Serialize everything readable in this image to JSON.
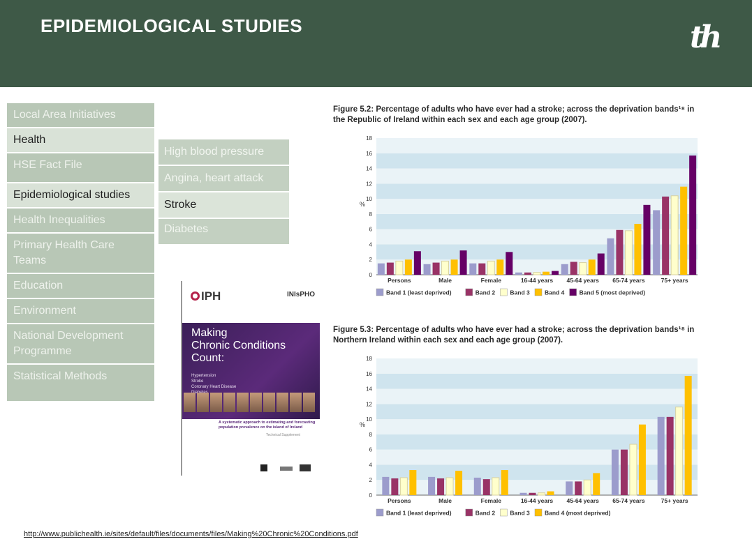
{
  "header": {
    "title": "EPIDEMIOLOGICAL STUDIES",
    "logo": "th"
  },
  "nav": {
    "items": [
      {
        "label": "Local Area Initiatives",
        "active": false
      },
      {
        "label": "Health",
        "active": true
      },
      {
        "label": "HSE Fact File",
        "active": false
      },
      {
        "label": "Epidemiological studies",
        "active": true
      },
      {
        "label": "Health Inequalities",
        "active": false
      },
      {
        "label": "Primary Health Care Teams",
        "active": false
      },
      {
        "label": "Education",
        "active": false
      },
      {
        "label": "Environment",
        "active": false
      },
      {
        "label": "National Development Programme",
        "active": false
      },
      {
        "label": "Statistical Methods",
        "active": false
      }
    ]
  },
  "subnav": {
    "items": [
      {
        "label": "High blood pressure",
        "active": false
      },
      {
        "label": "Angina, heart attack",
        "active": false
      },
      {
        "label": "Stroke",
        "active": true
      },
      {
        "label": "Diabetes",
        "active": false
      }
    ]
  },
  "report": {
    "iph": "IPH",
    "insph": "INIsPHO",
    "title_line1": "Making",
    "title_line2": "Chronic Conditions",
    "title_line3": "Count:",
    "list": [
      "Hypertension",
      "Stroke",
      "Coronary Heart Disease",
      "Diabetes"
    ],
    "subtitle": "A systematic approach to estimating and forecasting population prevalence on the island of Ireland",
    "tech": "Technical Supplement"
  },
  "url": "http://www.publichealth.ie/sites/default/files/documents/files/Making%20Chronic%20Conditions.pdf",
  "colors": {
    "band1": "#9c9ccc",
    "band2": "#993366",
    "band3": "#ffffcc",
    "band4": "#ffc000",
    "band5": "#660066",
    "stripe": "#cfe4ee",
    "stripe_alt": "#eaf3f7"
  },
  "chart_data": [
    {
      "type": "bar",
      "title": "Figure 5.2: Percentage of adults who have ever had a stroke; across the deprivation bands¹⁸ in the Republic of Ireland within each sex and each age group (2007).",
      "ylabel": "%",
      "ylim": [
        0,
        18
      ],
      "yticks": [
        0,
        2,
        4,
        6,
        8,
        10,
        12,
        14,
        16,
        18
      ],
      "categories": [
        "Persons",
        "Male",
        "Female",
        "16-44 years",
        "45-64 years",
        "65-74 years",
        "75+ years"
      ],
      "series": [
        {
          "name": "Band 1 (least deprived)",
          "values": [
            1.5,
            1.4,
            1.5,
            0.3,
            1.4,
            4.8,
            8.5
          ]
        },
        {
          "name": "Band 2",
          "values": [
            1.6,
            1.6,
            1.5,
            0.3,
            1.7,
            5.9,
            10.3
          ]
        },
        {
          "name": "Band 3",
          "values": [
            1.8,
            1.8,
            1.8,
            0.3,
            1.6,
            5.8,
            10.4
          ]
        },
        {
          "name": "Band 4",
          "values": [
            2.0,
            2.0,
            2.0,
            0.4,
            2.0,
            6.7,
            11.6
          ]
        },
        {
          "name": "Band 5 (most deprived)",
          "values": [
            3.1,
            3.2,
            3.0,
            0.5,
            2.8,
            9.2,
            15.7
          ]
        }
      ],
      "legend": "bottom"
    },
    {
      "type": "bar",
      "title": "Figure 5.3: Percentage of adults who have ever had a stroke; across the deprivation bands¹⁸ in Northern Ireland within each sex and each age group (2007).",
      "ylabel": "%",
      "ylim": [
        0,
        18
      ],
      "yticks": [
        0,
        2,
        4,
        6,
        8,
        10,
        12,
        14,
        16,
        18
      ],
      "categories": [
        "Persons",
        "Male",
        "Female",
        "16-44 years",
        "45-64 years",
        "65-74 years",
        "75+ years"
      ],
      "series": [
        {
          "name": "Band 1 (least deprived)",
          "values": [
            2.4,
            2.4,
            2.3,
            0.3,
            1.8,
            6.0,
            10.3
          ]
        },
        {
          "name": "Band 2",
          "values": [
            2.2,
            2.2,
            2.1,
            0.3,
            1.8,
            6.0,
            10.3
          ]
        },
        {
          "name": "Band 3",
          "values": [
            2.3,
            2.3,
            2.3,
            0.3,
            2.0,
            6.7,
            11.6
          ]
        },
        {
          "name": "Band 4 (most deprived)",
          "values": [
            3.3,
            3.2,
            3.3,
            0.5,
            2.9,
            9.3,
            15.7
          ]
        }
      ],
      "legend": "bottom"
    }
  ]
}
